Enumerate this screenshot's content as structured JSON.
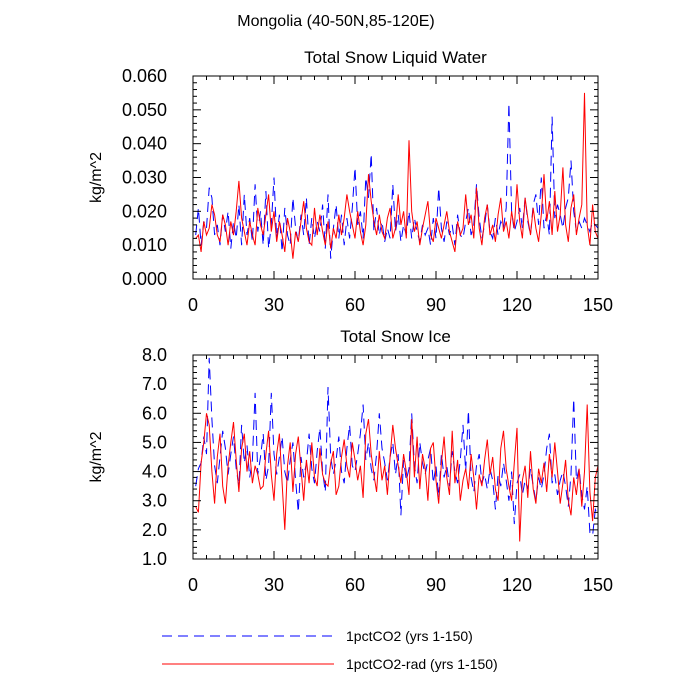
{
  "figure_title": "Mongolia (40-50N,85-120E)",
  "legend": [
    {
      "label": "1pctCO2 (yrs 1-150)",
      "color": "#0000ff",
      "dash": "dashed"
    },
    {
      "label": "1pctCO2-rad (yrs 1-150)",
      "color": "#ff0000",
      "dash": "solid"
    }
  ],
  "chart_data": [
    {
      "type": "line",
      "title": "Total Snow Liquid Water",
      "xlabel": "",
      "ylabel": "kg/m^2",
      "xlim": [
        0,
        150
      ],
      "ylim": [
        0,
        0.06
      ],
      "x_ticks": [
        0,
        30,
        60,
        90,
        120,
        150
      ],
      "x_tick_labels": [
        "0",
        "30",
        "60",
        "90",
        "120",
        "150"
      ],
      "y_ticks": [
        0,
        0.01,
        0.02,
        0.03,
        0.04,
        0.05,
        0.06
      ],
      "y_tick_labels": [
        "0.000",
        "0.010",
        "0.020",
        "0.030",
        "0.040",
        "0.050",
        "0.060"
      ],
      "grid": false,
      "x_start": 1,
      "series": [
        {
          "name": "1pctCO2 (yrs 1-150)",
          "color": "#0000ff",
          "dash": "dashed",
          "values": [
            0.013,
            0.021,
            0.01,
            0.017,
            0.015,
            0.027,
            0.024,
            0.013,
            0.016,
            0.01,
            0.019,
            0.014,
            0.02,
            0.009,
            0.017,
            0.012,
            0.022,
            0.01,
            0.025,
            0.013,
            0.018,
            0.011,
            0.028,
            0.014,
            0.02,
            0.01,
            0.026,
            0.009,
            0.016,
            0.03,
            0.012,
            0.019,
            0.008,
            0.021,
            0.013,
            0.01,
            0.024,
            0.015,
            0.011,
            0.019,
            0.013,
            0.024,
            0.01,
            0.018,
            0.012,
            0.017,
            0.014,
            0.022,
            0.009,
            0.025,
            0.006,
            0.015,
            0.022,
            0.012,
            0.019,
            0.01,
            0.018,
            0.012,
            0.021,
            0.033,
            0.016,
            0.02,
            0.012,
            0.03,
            0.024,
            0.037,
            0.014,
            0.021,
            0.013,
            0.017,
            0.011,
            0.015,
            0.012,
            0.028,
            0.014,
            0.019,
            0.011,
            0.016,
            0.013,
            0.02,
            0.012,
            0.018,
            0.014,
            0.011,
            0.016,
            0.013,
            0.015,
            0.01,
            0.018,
            0.012,
            0.027,
            0.015,
            0.011,
            0.017,
            0.013,
            0.016,
            0.01,
            0.019,
            0.013,
            0.012,
            0.017,
            0.021,
            0.013,
            0.016,
            0.028,
            0.018,
            0.012,
            0.016,
            0.022,
            0.014,
            0.012,
            0.018,
            0.013,
            0.017,
            0.015,
            0.021,
            0.052,
            0.02,
            0.014,
            0.017,
            0.021,
            0.015,
            0.024,
            0.017,
            0.013,
            0.022,
            0.025,
            0.016,
            0.03,
            0.015,
            0.019,
            0.013,
            0.048,
            0.018,
            0.022,
            0.019,
            0.015,
            0.021,
            0.024,
            0.035,
            0.02,
            0.014,
            0.017,
            0.015,
            0.018,
            0.016,
            0.014,
            0.017,
            0.016,
            0.015
          ]
        },
        {
          "name": "1pctCO2-rad (yrs 1-150)",
          "color": "#ff0000",
          "dash": "solid",
          "values": [
            0.012,
            0.013,
            0.008,
            0.017,
            0.013,
            0.015,
            0.022,
            0.019,
            0.013,
            0.011,
            0.019,
            0.016,
            0.01,
            0.017,
            0.013,
            0.02,
            0.029,
            0.018,
            0.014,
            0.01,
            0.017,
            0.013,
            0.01,
            0.021,
            0.016,
            0.013,
            0.019,
            0.025,
            0.014,
            0.02,
            0.011,
            0.017,
            0.013,
            0.008,
            0.018,
            0.014,
            0.006,
            0.014,
            0.011,
            0.017,
            0.023,
            0.015,
            0.011,
            0.01,
            0.021,
            0.013,
            0.019,
            0.014,
            0.01,
            0.017,
            0.009,
            0.015,
            0.012,
            0.019,
            0.013,
            0.018,
            0.025,
            0.02,
            0.016,
            0.012,
            0.02,
            0.014,
            0.01,
            0.016,
            0.031,
            0.023,
            0.017,
            0.013,
            0.019,
            0.014,
            0.012,
            0.018,
            0.021,
            0.012,
            0.015,
            0.025,
            0.016,
            0.02,
            0.012,
            0.041,
            0.02,
            0.014,
            0.017,
            0.01,
            0.015,
            0.019,
            0.023,
            0.013,
            0.011,
            0.018,
            0.015,
            0.012,
            0.016,
            0.02,
            0.014,
            0.011,
            0.008,
            0.017,
            0.013,
            0.015,
            0.025,
            0.016,
            0.019,
            0.012,
            0.027,
            0.015,
            0.01,
            0.018,
            0.022,
            0.013,
            0.016,
            0.011,
            0.019,
            0.024,
            0.014,
            0.017,
            0.012,
            0.02,
            0.015,
            0.028,
            0.017,
            0.012,
            0.024,
            0.018,
            0.013,
            0.021,
            0.015,
            0.011,
            0.019,
            0.031,
            0.017,
            0.023,
            0.013,
            0.026,
            0.014,
            0.019,
            0.033,
            0.016,
            0.011,
            0.021,
            0.025,
            0.013,
            0.018,
            0.022,
            0.055,
            0.016,
            0.01,
            0.022,
            0.014,
            0.012
          ]
        }
      ]
    },
    {
      "type": "line",
      "title": "Total Snow Ice",
      "xlabel": "",
      "ylabel": "kg/m^2",
      "xlim": [
        0,
        150
      ],
      "ylim": [
        1,
        8
      ],
      "x_ticks": [
        0,
        30,
        60,
        90,
        120,
        150
      ],
      "x_tick_labels": [
        "0",
        "30",
        "60",
        "90",
        "120",
        "150"
      ],
      "y_ticks": [
        1,
        2,
        3,
        4,
        5,
        6,
        7,
        8
      ],
      "y_tick_labels": [
        "1.0",
        "2.0",
        "3.0",
        "4.0",
        "5.0",
        "6.0",
        "7.0",
        "8.0"
      ],
      "grid": false,
      "x_start": 1,
      "series": [
        {
          "name": "1pctCO2 (yrs 1-150)",
          "color": "#0000ff",
          "dash": "dashed",
          "values": [
            3.5,
            4.1,
            4.3,
            5.2,
            4.6,
            7.9,
            5.8,
            4.2,
            3.6,
            4.5,
            5.4,
            4.8,
            3.9,
            4.6,
            5.2,
            4.1,
            3.5,
            5.6,
            4.3,
            4.9,
            3.8,
            4.4,
            6.7,
            3.9,
            4.5,
            5.3,
            3.7,
            4.2,
            6.7,
            4.6,
            3.9,
            4.5,
            5.2,
            4.0,
            3.6,
            4.4,
            5.0,
            3.7,
            2.6,
            4.5,
            3.8,
            4.3,
            5.3,
            4.1,
            3.6,
            4.7,
            5.5,
            4.0,
            3.3,
            6.9,
            4.5,
            3.9,
            4.4,
            5.2,
            4.0,
            3.6,
            4.8,
            5.6,
            4.2,
            4.0,
            4.6,
            5.3,
            6.3,
            4.4,
            5.0,
            4.1,
            3.7,
            4.6,
            6.0,
            4.8,
            4.3,
            3.7,
            4.5,
            5.0,
            3.9,
            4.6,
            2.5,
            4.4,
            3.7,
            4.1,
            6.0,
            4.2,
            3.6,
            5.0,
            4.3,
            3.9,
            4.4,
            4.8,
            3.6,
            4.2,
            3.1,
            4.6,
            3.8,
            4.2,
            3.5,
            4.7,
            4.0,
            3.6,
            4.4,
            5.6,
            4.0,
            6.1,
            3.8,
            3.3,
            4.2,
            4.6,
            3.6,
            3.9,
            3.4,
            4.1,
            3.7,
            2.7,
            3.9,
            3.5,
            4.3,
            3.7,
            3.0,
            4.0,
            2.2,
            3.6,
            3.9,
            3.2,
            3.7,
            3.4,
            4.1,
            3.5,
            3.0,
            3.8,
            3.4,
            3.9,
            4.8,
            5.3,
            3.6,
            3.9,
            3.2,
            3.7,
            4.0,
            3.5,
            2.8,
            3.9,
            6.5,
            3.7,
            4.1,
            3.2,
            2.7,
            3.5,
            1.9,
            1.8,
            2.7,
            2.5
          ]
        },
        {
          "name": "1pctCO2-rad (yrs 1-150)",
          "color": "#ff0000",
          "dash": "solid",
          "values": [
            2.8,
            2.6,
            4.3,
            5.0,
            6.0,
            5.6,
            4.0,
            2.9,
            4.5,
            5.3,
            3.5,
            2.9,
            4.2,
            5.0,
            5.7,
            4.4,
            3.3,
            4.8,
            5.3,
            4.0,
            4.7,
            3.6,
            4.2,
            3.9,
            3.4,
            3.5,
            4.6,
            5.4,
            3.9,
            3.0,
            4.6,
            5.3,
            3.6,
            2.0,
            4.2,
            5.0,
            3.3,
            4.6,
            5.2,
            4.1,
            3.0,
            4.4,
            3.6,
            5.0,
            3.8,
            3.5,
            4.8,
            3.9,
            3.6,
            3.5,
            4.3,
            4.7,
            3.2,
            3.5,
            4.5,
            5.1,
            4.2,
            3.8,
            5.0,
            4.4,
            3.7,
            4.2,
            3.1,
            5.3,
            5.8,
            4.6,
            3.9,
            3.3,
            4.7,
            3.7,
            4.2,
            3.2,
            4.5,
            5.6,
            4.8,
            4.2,
            3.6,
            4.6,
            4.0,
            3.2,
            5.8,
            3.8,
            5.2,
            3.4,
            4.6,
            4.1,
            3.0,
            4.8,
            5.0,
            3.7,
            2.9,
            4.3,
            5.2,
            3.8,
            3.2,
            5.4,
            3.6,
            4.4,
            3.0,
            3.7,
            4.1,
            3.4,
            4.6,
            3.8,
            2.7,
            3.9,
            3.5,
            4.4,
            5.1,
            3.9,
            4.5,
            3.4,
            3.0,
            4.8,
            5.4,
            4.1,
            3.5,
            3.0,
            4.3,
            5.5,
            1.6,
            3.7,
            4.2,
            3.1,
            4.7,
            3.4,
            2.9,
            4.1,
            3.6,
            4.3,
            3.3,
            4.6,
            3.8,
            5.0,
            4.0,
            2.9,
            3.6,
            4.4,
            3.0,
            2.5,
            3.8,
            3.2,
            4.1,
            2.8,
            4.0,
            6.3,
            3.3,
            2.3,
            3.8,
            4.2
          ]
        }
      ]
    }
  ]
}
